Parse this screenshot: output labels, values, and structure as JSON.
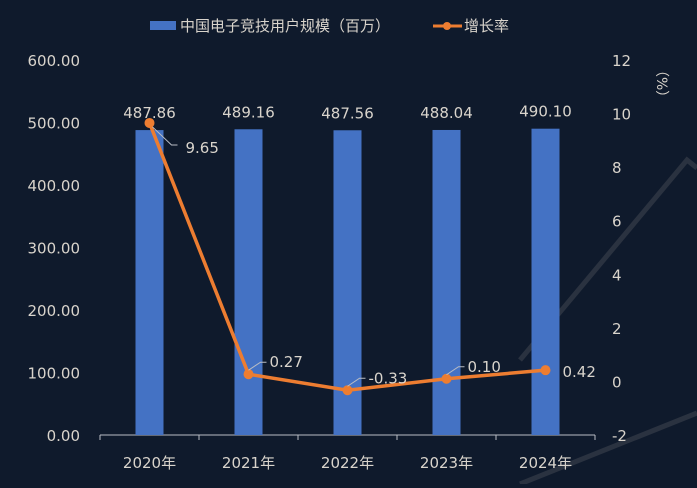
{
  "chart_data": {
    "type": "bar+line",
    "categories": [
      "2020年",
      "2021年",
      "2022年",
      "2023年",
      "2024年"
    ],
    "series": [
      {
        "name": "中国电子竞技用户规模（百万）",
        "type": "bar",
        "axis": "left",
        "values": [
          487.86,
          489.16,
          487.56,
          488.04,
          490.1
        ],
        "labels": [
          "487.86",
          "489.16",
          "487.56",
          "488.04",
          "490.10"
        ],
        "color": "#4472c4"
      },
      {
        "name": "增长率",
        "type": "line",
        "axis": "right",
        "values": [
          9.65,
          0.27,
          -0.33,
          0.1,
          0.42
        ],
        "labels": [
          "9.65",
          "0.27",
          "-0.33",
          "0.10",
          "0.42"
        ],
        "color": "#ed7d31"
      }
    ],
    "left_axis": {
      "ylim": [
        0,
        600
      ],
      "ticks": [
        "0.00",
        "100.00",
        "200.00",
        "300.00",
        "400.00",
        "500.00",
        "600.00"
      ]
    },
    "right_axis": {
      "ylim": [
        -2,
        12
      ],
      "ticks": [
        "-2",
        "0",
        "2",
        "4",
        "6",
        "8",
        "10",
        "12"
      ],
      "label": "（%）"
    },
    "legend": {
      "position": "top"
    },
    "grid": false,
    "background": "#0f1a2c"
  }
}
